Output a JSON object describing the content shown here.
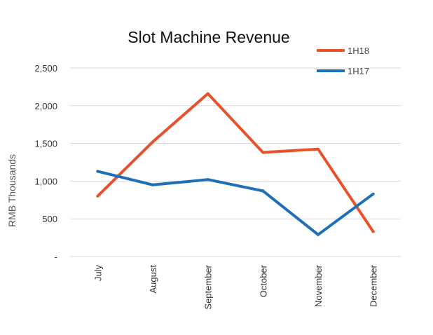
{
  "chart_data": {
    "type": "line",
    "title": "Slot Machine Revenue",
    "ylabel": "RMB Thousands",
    "xlabel": "",
    "categories": [
      "July",
      "August",
      "September",
      "October",
      "November",
      "December"
    ],
    "ylim": [
      0,
      2500
    ],
    "yticks": [
      {
        "value": 0,
        "label": "-"
      },
      {
        "value": 500,
        "label": "500"
      },
      {
        "value": 1000,
        "label": "1,000"
      },
      {
        "value": 1500,
        "label": "1,500"
      },
      {
        "value": 2000,
        "label": "2,000"
      },
      {
        "value": 2500,
        "label": "2,500"
      }
    ],
    "grid": true,
    "legend_position": "top-right",
    "series": [
      {
        "name": "1H18",
        "color": "#e8512a",
        "values": [
          800,
          1520,
          2160,
          1380,
          1425,
          330
        ]
      },
      {
        "name": "1H17",
        "color": "#1f6fb8",
        "values": [
          1130,
          950,
          1020,
          870,
          290,
          830
        ]
      }
    ]
  }
}
